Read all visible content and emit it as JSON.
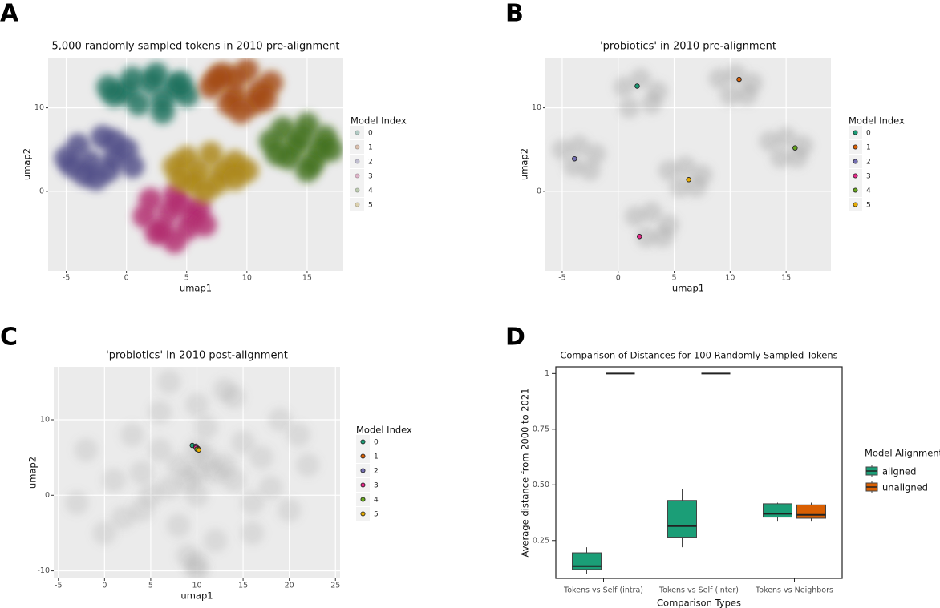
{
  "chart_data": [
    {
      "type": "scatter",
      "panel_label": "A",
      "title": "5,000 randomly sampled tokens in 2010 pre-alignment",
      "x_label": "umap1",
      "y_label": "umap2",
      "legend_title": "Model Index",
      "xlim": [
        -6.5,
        18
      ],
      "ylim": [
        -9.5,
        16
      ],
      "xticks": [
        -5,
        0,
        5,
        10,
        15
      ],
      "yticks": [
        0,
        10
      ],
      "grid": true,
      "series": [
        {
          "name": "0",
          "color": "#1b6e5a",
          "alpha": 0.8,
          "x": [
            0,
            2,
            4,
            -1,
            1,
            3,
            5,
            0.5,
            2.5,
            4.5,
            -1.5,
            3
          ],
          "values": [
            12,
            13,
            12.5,
            11.5,
            10.5,
            11,
            11.5,
            13.5,
            14,
            13,
            12.5,
            9.5
          ]
        },
        {
          "name": "1",
          "color": "#a3480c",
          "alpha": 0.8,
          "x": [
            8,
            10,
            12,
            7,
            9,
            11,
            8.5,
            10.5,
            9,
            11.5,
            7.5,
            9.5
          ],
          "values": [
            14,
            14.5,
            13,
            12.5,
            11.5,
            12,
            10.5,
            10.5,
            13.5,
            11,
            13.5,
            9.5
          ]
        },
        {
          "name": "2",
          "color": "#4e4a86",
          "alpha": 0.8,
          "x": [
            -4,
            -2,
            0,
            -5,
            -3,
            -1,
            -3.5,
            -1.5,
            0.5,
            -4.5,
            -2.5,
            -1
          ],
          "values": [
            5.5,
            6.5,
            5,
            4,
            3.5,
            4,
            2,
            2.5,
            3,
            3,
            1.5,
            6
          ]
        },
        {
          "name": "3",
          "color": "#b0246b",
          "alpha": 0.8,
          "x": [
            2,
            4,
            6,
            1.5,
            3.5,
            5.5,
            3,
            5,
            4,
            2.5,
            6.5,
            4.5
          ],
          "values": [
            -1,
            -0.5,
            -2,
            -3,
            -2.5,
            -3,
            -4.5,
            -4.5,
            -6,
            -5,
            -4,
            -1.5
          ]
        },
        {
          "name": "4",
          "color": "#3f6e17",
          "alpha": 0.8,
          "x": [
            13,
            15,
            16.5,
            12,
            14,
            16,
            13.5,
            15.5,
            17,
            12.5,
            14.5,
            15
          ],
          "values": [
            7.5,
            8,
            6.5,
            6,
            5.5,
            5,
            4,
            3.5,
            5,
            4.5,
            6.5,
            2.5
          ]
        },
        {
          "name": "5",
          "color": "#a98312",
          "alpha": 0.8,
          "x": [
            5,
            7,
            9,
            4,
            6,
            8,
            10,
            5.5,
            7.5,
            9,
            6.5,
            4.5
          ],
          "values": [
            4,
            4.5,
            3.5,
            3,
            2.5,
            2.5,
            2.5,
            1,
            1,
            1.5,
            0,
            1.5
          ]
        }
      ]
    },
    {
      "type": "scatter",
      "panel_label": "B",
      "title": "'probiotics' in 2010 pre-alignment",
      "x_label": "umap1",
      "y_label": "umap2",
      "legend_title": "Model Index",
      "xlim": [
        -6.5,
        19
      ],
      "ylim": [
        -9.5,
        16
      ],
      "xticks": [
        -5,
        0,
        5,
        10,
        15
      ],
      "yticks": [
        0,
        10
      ],
      "grid": true,
      "series": [
        {
          "color": "#7f7f7f",
          "alpha": 0.28,
          "x": [
            0.5,
            2,
            3.5,
            1,
            3,
            9,
            10.5,
            12,
            10,
            11.5,
            -5,
            -3.5,
            -2,
            -4,
            -2.5,
            1.5,
            3,
            4.5,
            2.5,
            4,
            13.5,
            15,
            16.5,
            14.5,
            16,
            4.5,
            6,
            7.5,
            5.5,
            7
          ],
          "values": [
            12.5,
            13.5,
            12,
            10,
            10.5,
            13.5,
            14,
            13,
            11.5,
            11.5,
            5,
            5.5,
            4.5,
            3,
            2.5,
            -3,
            -2.5,
            -4,
            -5.5,
            -5.5,
            6,
            6.5,
            5.5,
            4,
            4,
            2.5,
            3,
            2,
            0.5,
            0.5
          ]
        },
        {
          "name": "0",
          "color": "#1b9e77",
          "alpha": 1,
          "x": [
            1.7
          ],
          "values": [
            12.6
          ]
        },
        {
          "name": "1",
          "color": "#d95f02",
          "alpha": 1,
          "x": [
            10.8
          ],
          "values": [
            13.4
          ]
        },
        {
          "name": "2",
          "color": "#7570b3",
          "alpha": 1,
          "x": [
            -3.9
          ],
          "values": [
            3.9
          ]
        },
        {
          "name": "3",
          "color": "#e7298a",
          "alpha": 1,
          "x": [
            1.9
          ],
          "values": [
            -5.4
          ]
        },
        {
          "name": "4",
          "color": "#66a61e",
          "alpha": 1,
          "x": [
            15.8
          ],
          "values": [
            5.2
          ]
        },
        {
          "name": "5",
          "color": "#e6ab02",
          "alpha": 1,
          "x": [
            6.3
          ],
          "values": [
            1.4
          ]
        }
      ]
    },
    {
      "type": "scatter",
      "panel_label": "C",
      "title": "'probiotics' in 2010 post-alignment",
      "x_label": "umap1",
      "y_label": "umap2",
      "legend_title": "Model Index",
      "xlim": [
        -5.5,
        25.5
      ],
      "ylim": [
        -11,
        17
      ],
      "xticks": [
        -5,
        0,
        5,
        10,
        15,
        20,
        25
      ],
      "yticks": [
        -10,
        0,
        10
      ],
      "grid": true,
      "series": [
        {
          "color": "#7f7f7f",
          "alpha": 0.16,
          "x": [
            10,
            8,
            12,
            9,
            11,
            10,
            7,
            13,
            6,
            14,
            5,
            15,
            4,
            16,
            3,
            17,
            2,
            18,
            1,
            19,
            0,
            20,
            -2,
            21,
            10,
            8,
            12,
            6,
            14,
            9,
            11,
            4,
            16,
            10,
            7,
            13,
            22,
            -3,
            10,
            10
          ],
          "values": [
            3,
            4,
            3,
            2,
            5,
            6,
            1,
            4,
            6,
            2,
            0,
            7,
            3,
            -1,
            8,
            5,
            -3,
            1,
            2,
            10,
            -5,
            -2,
            6,
            8,
            12,
            -4,
            -6,
            11,
            13,
            -8,
            9,
            -2,
            -5,
            -9,
            15,
            14,
            4,
            -1,
            0,
            -10
          ]
        },
        {
          "name": "0",
          "color": "#1b9e77",
          "alpha": 1,
          "x": [
            9.5
          ],
          "values": [
            6.6
          ]
        },
        {
          "name": "1",
          "color": "#d95f02",
          "alpha": 1,
          "x": [
            10.1
          ],
          "values": [
            6.2
          ]
        },
        {
          "name": "2",
          "color": "#7570b3",
          "alpha": 1,
          "x": [
            9.9
          ],
          "values": [
            6.5
          ]
        },
        {
          "name": "3",
          "color": "#e7298a",
          "alpha": 1,
          "x": [
            9.9
          ],
          "values": [
            6.3
          ]
        },
        {
          "name": "4",
          "color": "#66a61e",
          "alpha": 1,
          "x": [
            10.0
          ],
          "values": [
            6.1
          ]
        },
        {
          "name": "5",
          "color": "#e6ab02",
          "alpha": 1,
          "x": [
            10.2
          ],
          "values": [
            6.0
          ]
        }
      ]
    },
    {
      "type": "box",
      "panel_label": "D",
      "title": "Comparison of Distances for 100 Randomly Sampled Tokens",
      "x_label": "Comparison Types",
      "y_label": "Average distance from 2000 to 2021",
      "legend_title": "Model Alignment",
      "categories": [
        "Tokens vs Self (intra)",
        "Tokens vs Self (inter)",
        "Tokens vs Neighbors"
      ],
      "ylim": [
        0.08,
        1.03
      ],
      "yticks": [
        0.25,
        {
          "value": 0.5,
          "label": "0.50"
        },
        0.75,
        1
      ],
      "series": [
        {
          "name": "aligned",
          "color": "#1b9e77",
          "values": [
            [
              0.1,
              0.12,
              0.135,
              0.195,
              0.22
            ],
            [
              0.22,
              0.265,
              0.315,
              0.43,
              0.48
            ],
            [
              0.335,
              0.355,
              0.37,
              0.415,
              0.42
            ]
          ]
        },
        {
          "name": "unaligned",
          "color": "#d95f02",
          "values": [
            [
              1,
              1,
              1,
              1,
              1
            ],
            [
              1,
              1,
              1,
              1,
              1
            ],
            [
              0.335,
              0.35,
              0.365,
              0.41,
              0.42
            ]
          ]
        }
      ]
    }
  ]
}
